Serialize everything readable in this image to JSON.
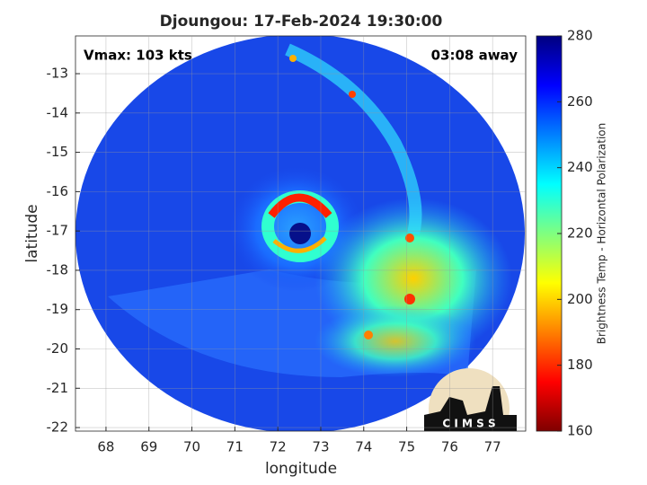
{
  "chart_data": {
    "type": "image",
    "title": "Djoungou: 17-Feb-2024 19:30:00",
    "annotations": [
      "Vmax: 103 kts",
      "03:08 away"
    ],
    "xlabel": "longitude",
    "ylabel": "latitude",
    "xlim": [
      67.29,
      77.77
    ],
    "ylim": [
      -22.09,
      -12.04
    ],
    "xticks": [
      68,
      69,
      70,
      71,
      72,
      73,
      74,
      75,
      76,
      77
    ],
    "yticks": [
      -22,
      -21,
      -20,
      -19,
      -18,
      -17,
      -16,
      -15,
      -14,
      -13
    ],
    "grid": true,
    "colorbar": {
      "label": "Brightness Temp - Horizontal Polarization",
      "lim": [
        160,
        280
      ],
      "ticks": [
        160,
        180,
        200,
        220,
        240,
        260,
        280
      ],
      "colormap": "jet"
    },
    "logo": "C I M S S"
  }
}
